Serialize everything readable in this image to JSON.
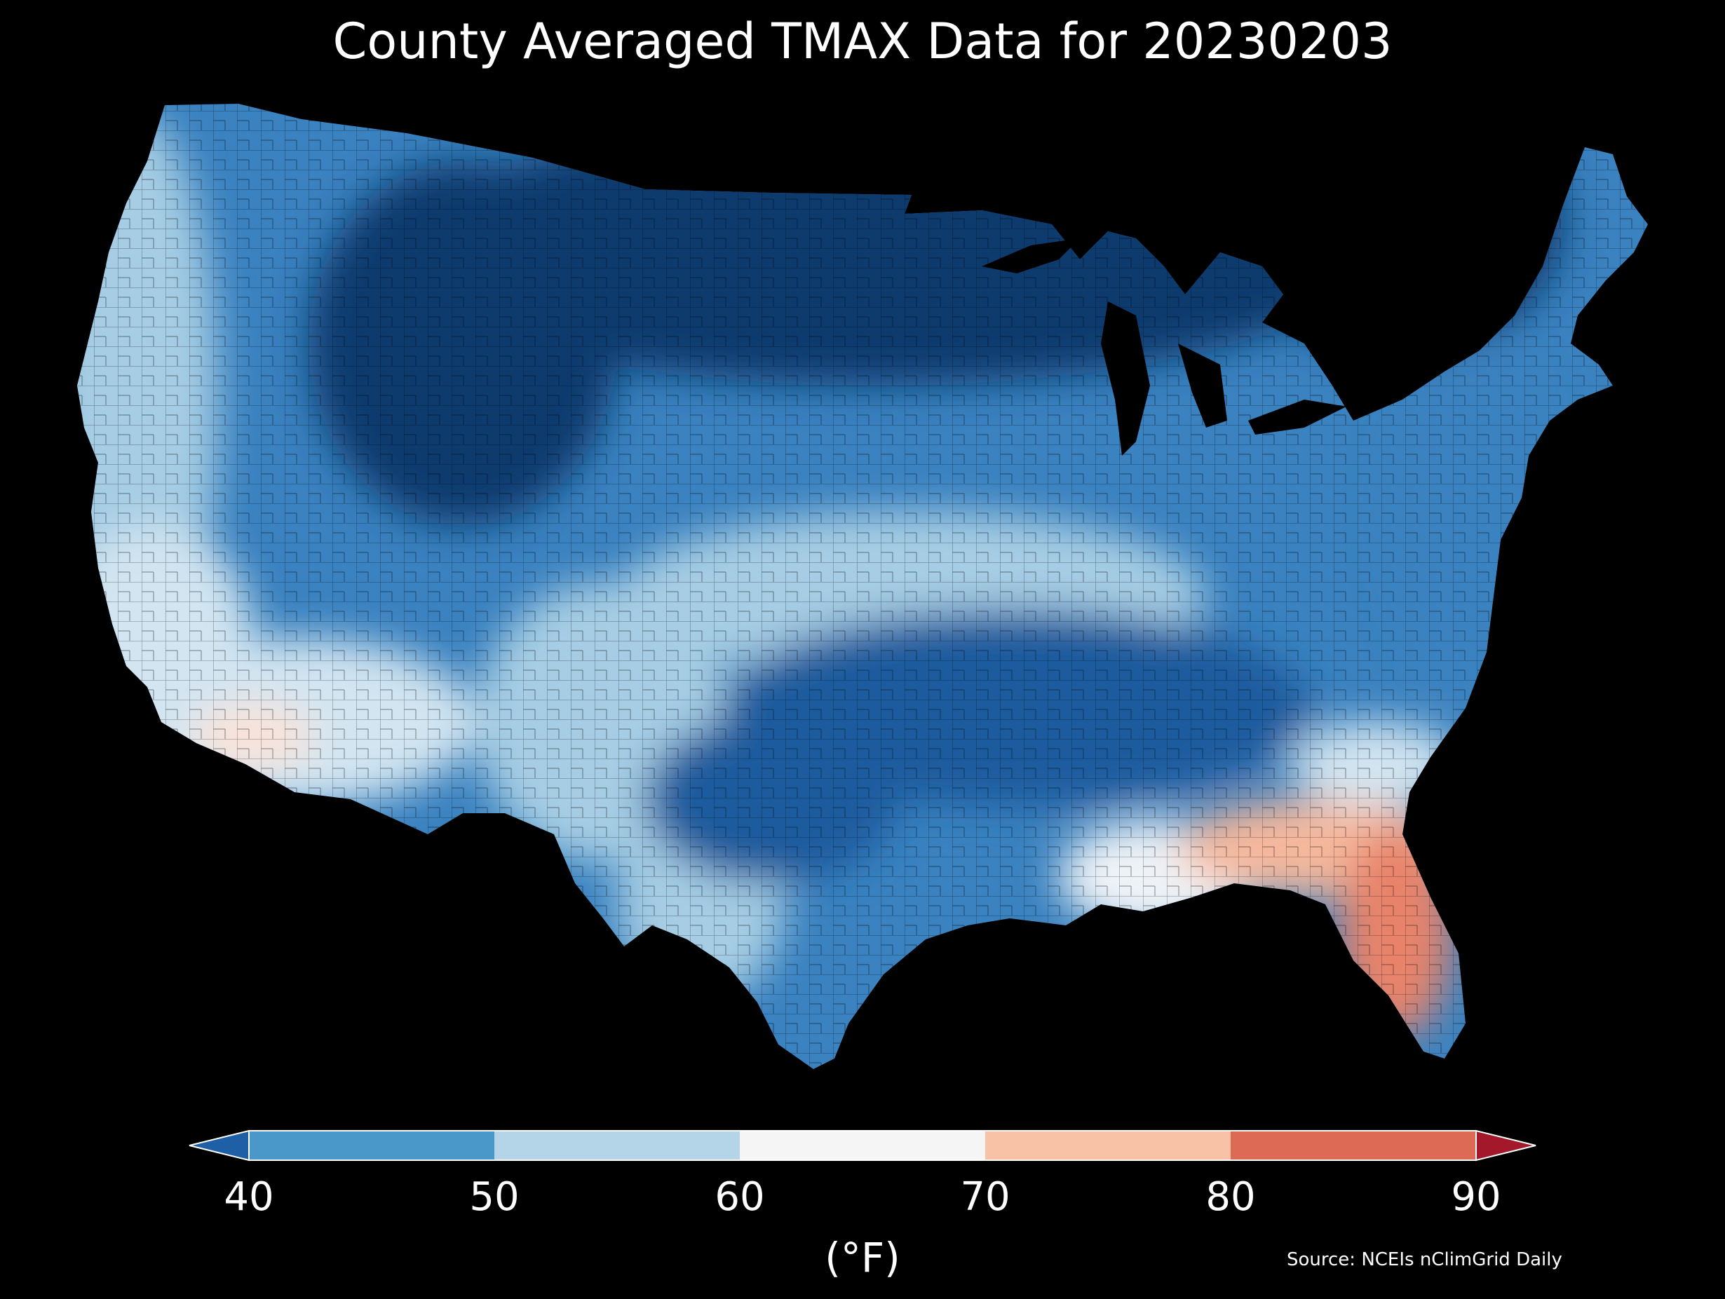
{
  "title": "County Averaged TMAX Data for 20230203",
  "source": "Source: NCEIs nClimGrid Daily",
  "colorbar": {
    "unit": "(°F)",
    "ticks": [
      "40",
      "50",
      "60",
      "70",
      "80",
      "90"
    ],
    "bins": [
      {
        "range": "<40",
        "color": "#1f5fa6"
      },
      {
        "range": "40-50",
        "color": "#4a97c9"
      },
      {
        "range": "50-60",
        "color": "#b4d5e8"
      },
      {
        "range": "60-70",
        "color": "#f5f5f5"
      },
      {
        "range": "70-80",
        "color": "#f7c2a6"
      },
      {
        "range": "80-90",
        "color": "#dc6a55"
      },
      {
        "range": ">90",
        "color": "#a3182a"
      }
    ]
  },
  "palette": {
    "deep": "#0b3a6e",
    "dark": "#1e5c9e",
    "mid": "#3a82c0",
    "light": "#6faed6",
    "pale": "#a6cde4",
    "paler": "#d2e5f1",
    "white": "#eef3f7",
    "warm1": "#fbe3d8",
    "warm2": "#f5b89c",
    "warm3": "#e8836a",
    "warm4": "#d9604e"
  }
}
